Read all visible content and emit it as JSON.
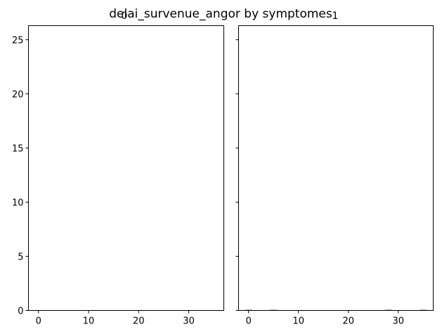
{
  "figure": {
    "title": "delai_survenue_angor by symptomes"
  },
  "chart_data": [
    {
      "type": "bar",
      "title": "0",
      "xlabel": "",
      "ylabel": "",
      "xlim": [
        -2,
        37
      ],
      "ylim": [
        0,
        26.3
      ],
      "xticks": [
        0,
        10,
        20,
        30
      ],
      "yticks": [
        0,
        5,
        10,
        15,
        20,
        25
      ],
      "bar_color": "#1f77b4",
      "grid": false,
      "bars": []
    },
    {
      "type": "bar",
      "title": "1",
      "xlabel": "",
      "ylabel": "",
      "xlim": [
        -2,
        37
      ],
      "ylim": [
        0,
        26.3
      ],
      "xticks": [
        0,
        10,
        20,
        30
      ],
      "yticks": [
        0,
        5,
        10,
        15,
        20,
        25
      ],
      "bar_color": "#1f77b4",
      "grid": false,
      "bars": [
        {
          "x": 0,
          "value": 0.05
        },
        {
          "x": 5,
          "value": 0.05
        },
        {
          "x": 28,
          "value": 0.05
        },
        {
          "x": 35,
          "value": 0.05
        }
      ]
    }
  ]
}
